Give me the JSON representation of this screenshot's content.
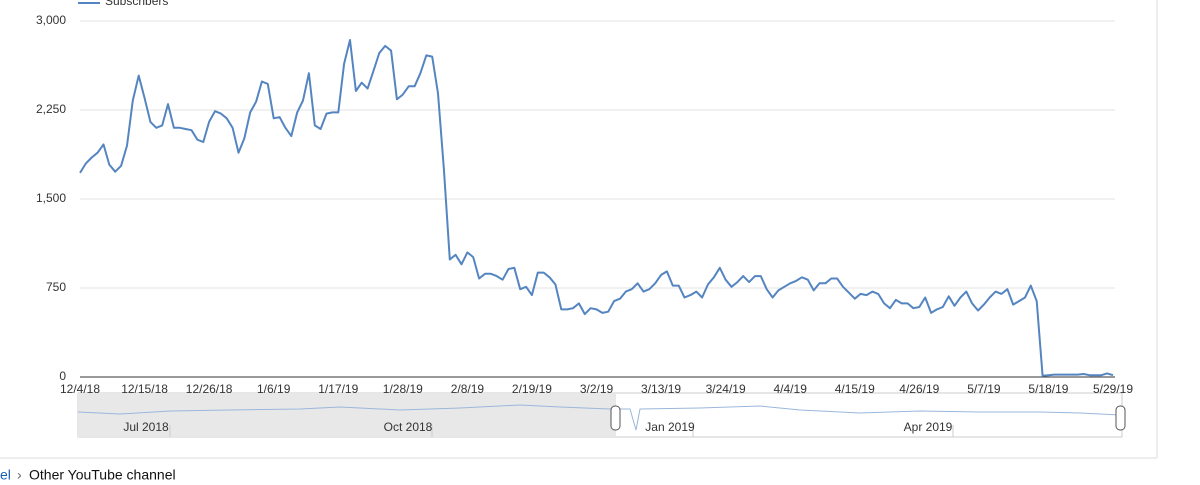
{
  "chart_data": {
    "type": "line",
    "categories": [
      "12/4/18",
      null,
      null,
      null,
      null,
      null,
      null,
      null,
      null,
      null,
      null,
      "12/15/18",
      null,
      null,
      null,
      null,
      null,
      null,
      null,
      null,
      null,
      null,
      "12/26/18",
      null,
      null,
      null,
      null,
      null,
      null,
      null,
      null,
      null,
      null,
      "1/6/19",
      null,
      null,
      null,
      null,
      null,
      null,
      null,
      null,
      null,
      null,
      "1/17/19",
      null,
      null,
      null,
      null,
      null,
      null,
      null,
      null,
      null,
      null,
      "1/28/19",
      null,
      null,
      null,
      null,
      null,
      null,
      null,
      null,
      null,
      null,
      "2/8/19",
      null,
      null,
      null,
      null,
      null,
      null,
      null,
      null,
      null,
      null,
      "2/19/19",
      null,
      null,
      null,
      null,
      null,
      null,
      null,
      null,
      null,
      null,
      "3/2/19",
      null,
      null,
      null,
      null,
      null,
      null,
      null,
      null,
      null,
      null,
      "3/13/19",
      null,
      null,
      null,
      null,
      null,
      null,
      null,
      null,
      null,
      null,
      "3/24/19",
      null,
      null,
      null,
      null,
      null,
      null,
      null,
      null,
      null,
      null,
      "4/4/19",
      null,
      null,
      null,
      null,
      null,
      null,
      null,
      null,
      null,
      null,
      "4/15/19",
      null,
      null,
      null,
      null,
      null,
      null,
      null,
      null,
      null,
      null,
      "4/26/19",
      null,
      null,
      null,
      null,
      null,
      null,
      null,
      null,
      null,
      null,
      "5/7/19",
      null,
      null,
      null,
      null,
      null,
      null,
      null,
      null,
      null,
      null,
      "5/18/19",
      null,
      null,
      null,
      null,
      null,
      null,
      null,
      null,
      null,
      null,
      "5/29/19"
    ],
    "series": [
      {
        "name": "Subscribers",
        "color": "#5585c0",
        "values": [
          1720,
          1800,
          1850,
          1890,
          1960,
          1790,
          1730,
          1780,
          1950,
          2330,
          2540,
          2350,
          2150,
          2100,
          2120,
          2300,
          2100,
          2100,
          2090,
          2080,
          2000,
          1980,
          2150,
          2240,
          2220,
          2180,
          2100,
          1890,
          2010,
          2230,
          2320,
          2490,
          2470,
          2180,
          2190,
          2100,
          2030,
          2230,
          2330,
          2560,
          2120,
          2090,
          2220,
          2230,
          2230,
          2640,
          2840,
          2410,
          2480,
          2430,
          2580,
          2730,
          2790,
          2750,
          2340,
          2380,
          2450,
          2450,
          2560,
          2710,
          2700,
          2390,
          1750,
          990,
          1030,
          950,
          1050,
          1010,
          830,
          870,
          870,
          850,
          820,
          910,
          920,
          740,
          760,
          690,
          880,
          880,
          840,
          780,
          570,
          570,
          580,
          620,
          530,
          580,
          570,
          540,
          550,
          640,
          660,
          720,
          740,
          790,
          720,
          740,
          790,
          860,
          890,
          770,
          770,
          670,
          690,
          720,
          670,
          780,
          840,
          920,
          820,
          760,
          800,
          850,
          800,
          850,
          850,
          740,
          670,
          730,
          760,
          790,
          810,
          840,
          820,
          730,
          790,
          790,
          830,
          830,
          760,
          710,
          660,
          700,
          690,
          720,
          700,
          620,
          580,
          650,
          620,
          620,
          580,
          590,
          670,
          540,
          570,
          590,
          680,
          600,
          670,
          720,
          620,
          560,
          610,
          670,
          720,
          700,
          740,
          610,
          640,
          670,
          770,
          640,
          10,
          15,
          20,
          20,
          20,
          20,
          20,
          25,
          15,
          15,
          15,
          30,
          15
        ]
      }
    ],
    "ylim": [
      0,
      3000
    ],
    "yticks": [
      0,
      750,
      {
        "value": 1500,
        "label": "1,500"
      },
      {
        "value": 2250,
        "label": "2,250"
      },
      {
        "value": 3000,
        "label": "3,000"
      }
    ],
    "grid": true
  },
  "navigator": {
    "labels": [
      "Jul 2018",
      "Oct 2018",
      "Jan 2019",
      "Apr 2019"
    ]
  },
  "breadcrumb": {
    "items": [
      "el",
      "Other YouTube channel"
    ],
    "separator": "›"
  }
}
